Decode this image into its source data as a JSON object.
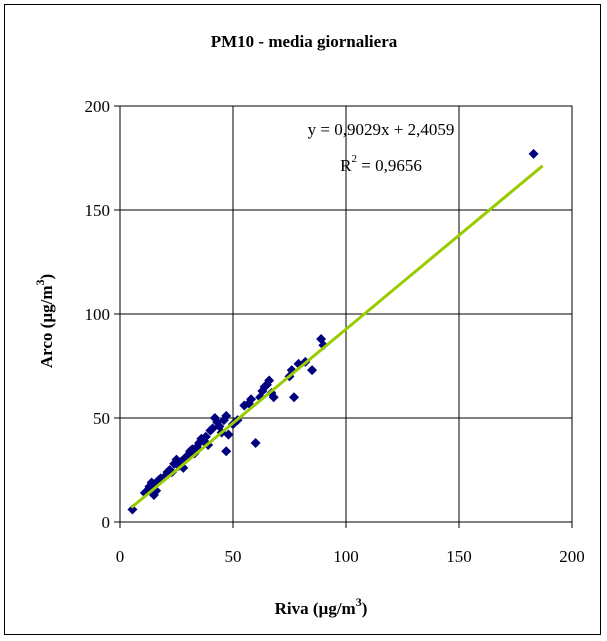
{
  "chart_data": {
    "type": "scatter",
    "title": "PM10 - media giornaliera",
    "xlabel": "Riva (µg/m³)",
    "ylabel": "Arco (µg/m³)",
    "xlim": [
      0,
      200
    ],
    "ylim": [
      0,
      200
    ],
    "xticks": [
      0,
      50,
      100,
      150,
      200
    ],
    "yticks": [
      0,
      50,
      100,
      150,
      200
    ],
    "grid": true,
    "colors": {
      "points": "#00007F",
      "trendline": "#99CC00"
    },
    "marker": "diamond",
    "trendline": {
      "slope": 0.9029,
      "intercept": 2.4059,
      "x_range": [
        5,
        187
      ],
      "equation": "y = 0,9029x + 2,4059",
      "r2_label": "R",
      "r2_sup": "2",
      "r2_value": " = 0,9656"
    },
    "points": [
      [
        5.5,
        6
      ],
      [
        11,
        14
      ],
      [
        12,
        15
      ],
      [
        13,
        17
      ],
      [
        14,
        19
      ],
      [
        15,
        18
      ],
      [
        15,
        13
      ],
      [
        16,
        15
      ],
      [
        17,
        20
      ],
      [
        18,
        21
      ],
      [
        20,
        22
      ],
      [
        21,
        24
      ],
      [
        22,
        25
      ],
      [
        23,
        24
      ],
      [
        24,
        28
      ],
      [
        25,
        30
      ],
      [
        26,
        27
      ],
      [
        27,
        29
      ],
      [
        28,
        26
      ],
      [
        29,
        31
      ],
      [
        30,
        32
      ],
      [
        31,
        34
      ],
      [
        32,
        35
      ],
      [
        33,
        33
      ],
      [
        34,
        36
      ],
      [
        35,
        38
      ],
      [
        36,
        40
      ],
      [
        37,
        39
      ],
      [
        38,
        41
      ],
      [
        39,
        37
      ],
      [
        40,
        44
      ],
      [
        41,
        45
      ],
      [
        42,
        50
      ],
      [
        43,
        48
      ],
      [
        44,
        46
      ],
      [
        45,
        43
      ],
      [
        46,
        49
      ],
      [
        47,
        51
      ],
      [
        47,
        34
      ],
      [
        48,
        42
      ],
      [
        50,
        47
      ],
      [
        52,
        49
      ],
      [
        55,
        56
      ],
      [
        57,
        57
      ],
      [
        58,
        59
      ],
      [
        60,
        38
      ],
      [
        62,
        60
      ],
      [
        63,
        63
      ],
      [
        64,
        65
      ],
      [
        65,
        66
      ],
      [
        66,
        68
      ],
      [
        67,
        62
      ],
      [
        68,
        60
      ],
      [
        75,
        70
      ],
      [
        76,
        73
      ],
      [
        77,
        60
      ],
      [
        79,
        76
      ],
      [
        82,
        77
      ],
      [
        85,
        73
      ],
      [
        89,
        88
      ],
      [
        90,
        85
      ],
      [
        183,
        177
      ]
    ]
  }
}
